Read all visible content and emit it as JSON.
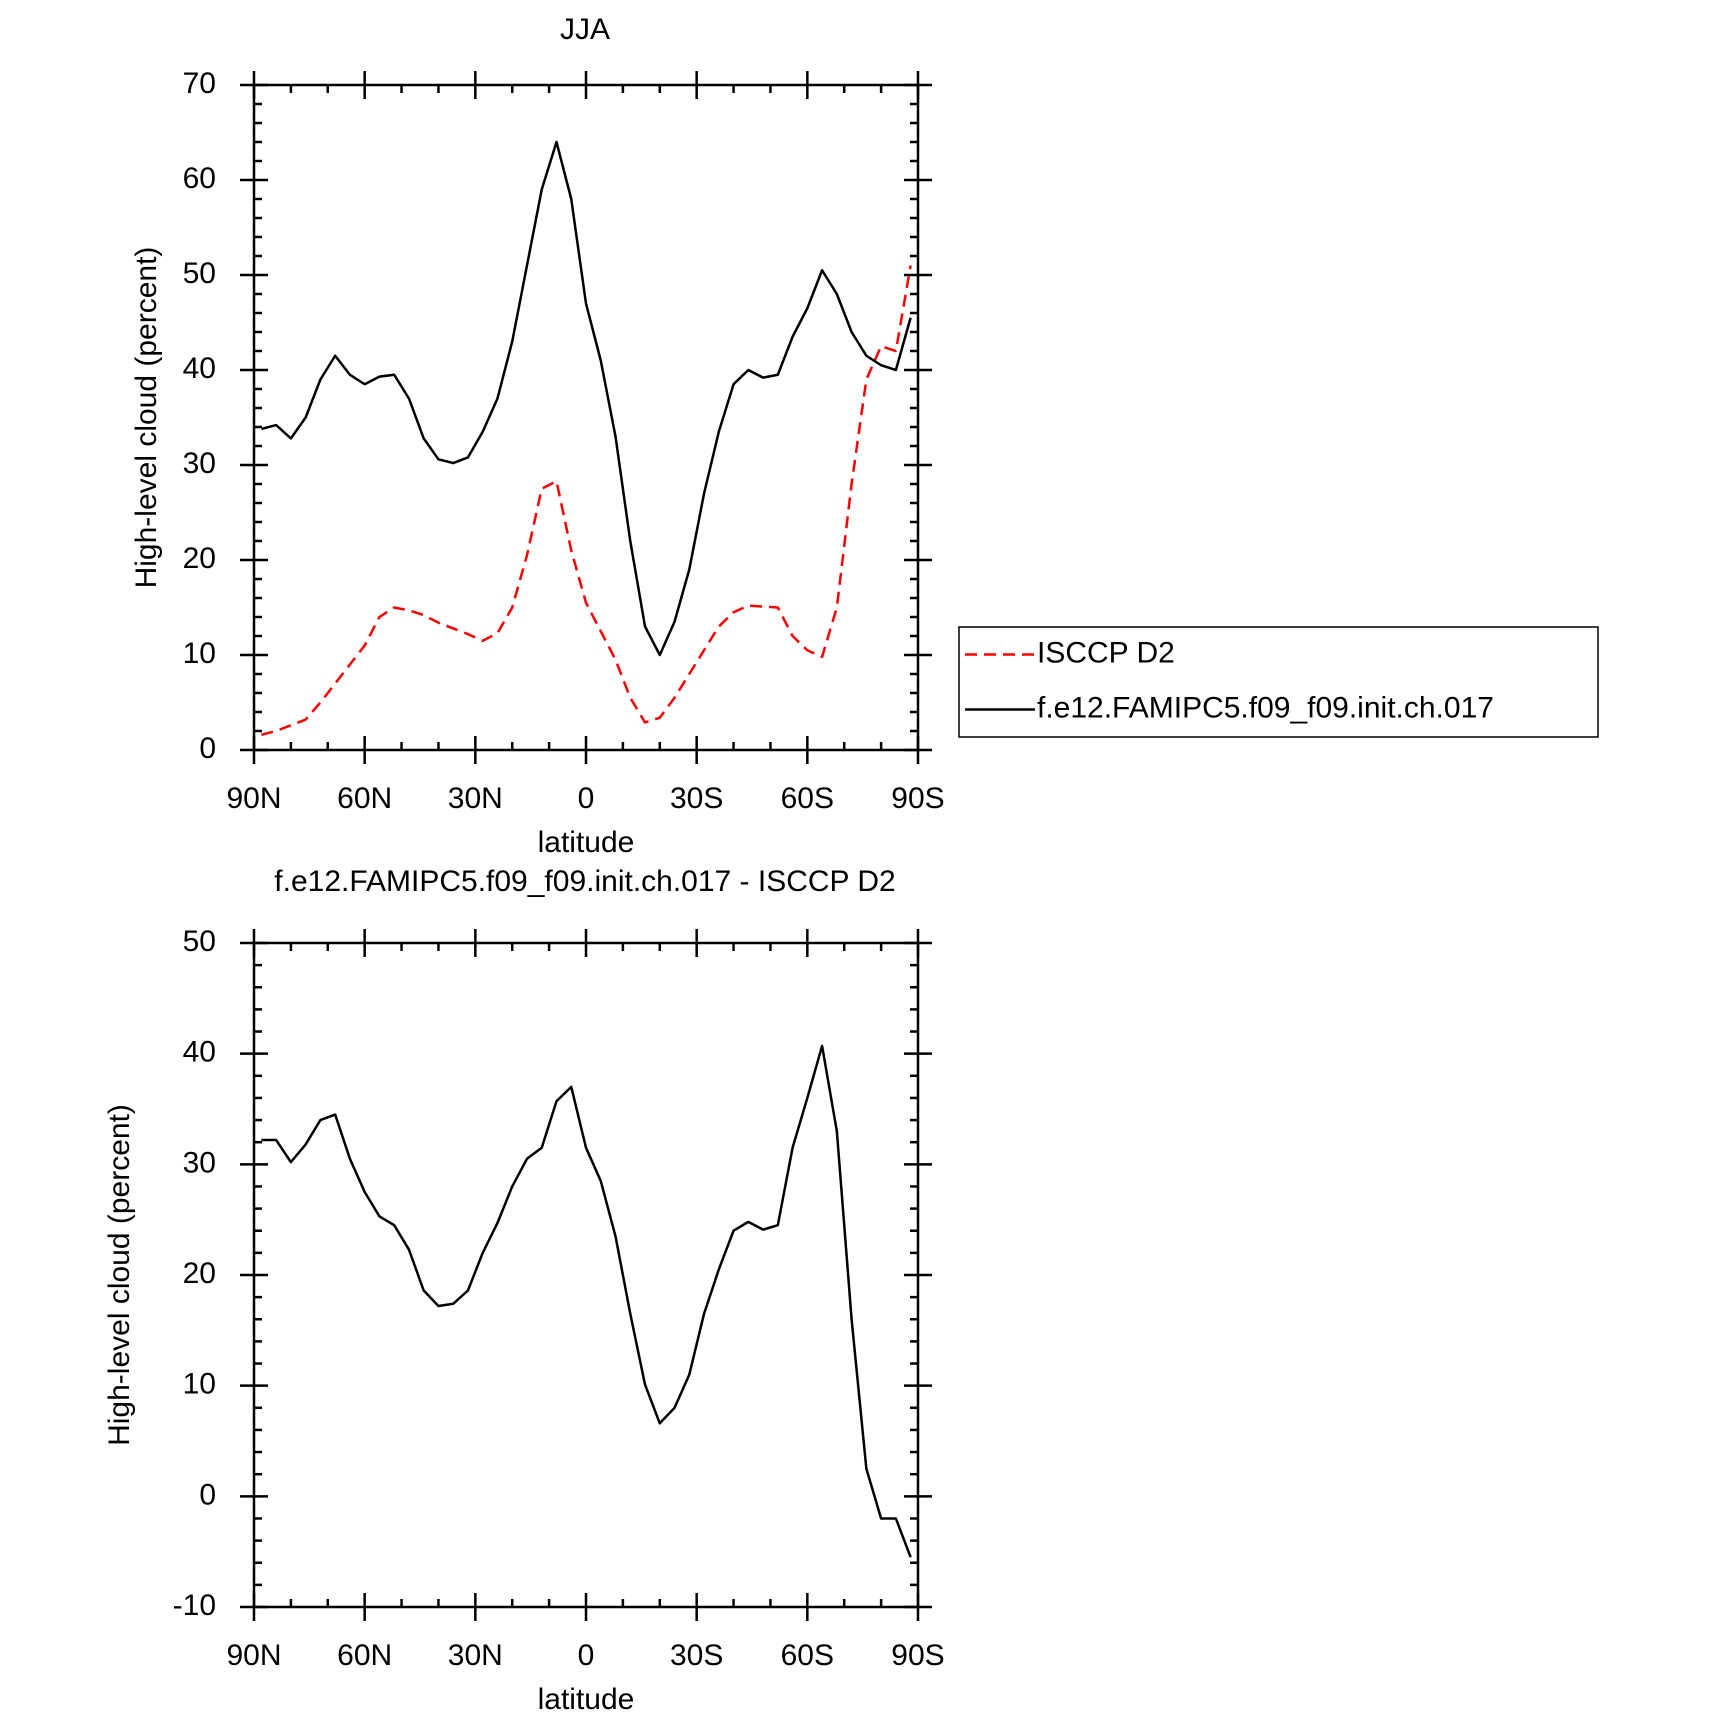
{
  "chart_data": [
    {
      "type": "line",
      "title": "JJA",
      "x_label": "latitude",
      "y_label": "High-level cloud (percent)",
      "xlim": [
        90,
        -90
      ],
      "ylim": [
        0,
        70
      ],
      "xticks": [
        {
          "value": 90,
          "label": "90N"
        },
        {
          "value": 60,
          "label": "60N"
        },
        {
          "value": 30,
          "label": "30N"
        },
        0,
        {
          "value": -30,
          "label": "30S"
        },
        {
          "value": -60,
          "label": "60S"
        },
        {
          "value": -90,
          "label": "90S"
        }
      ],
      "yticks": [
        0,
        10,
        20,
        30,
        40,
        50,
        60,
        70
      ],
      "legend": "right",
      "x": [
        88,
        84,
        80,
        76,
        72,
        68,
        64,
        60,
        56,
        52,
        48,
        44,
        40,
        36,
        32,
        28,
        24,
        20,
        16,
        12,
        8,
        4,
        0,
        -4,
        -8,
        -12,
        -16,
        -20,
        -24,
        -28,
        -32,
        -36,
        -40,
        -44,
        -48,
        -52,
        -56,
        -60,
        -64,
        -68,
        -72,
        -76,
        -80,
        -84,
        -88
      ],
      "series": [
        {
          "name": "ISCCP D2",
          "color": "#ff0000",
          "dash": true,
          "values": [
            1.6,
            2.0,
            2.6,
            3.2,
            5,
            7,
            9,
            11,
            14,
            15,
            14.7,
            14.2,
            13.4,
            12.8,
            12.2,
            11.5,
            12.3,
            15,
            20.5,
            27.5,
            28.3,
            21,
            15.5,
            12.5,
            9.5,
            5.5,
            2.9,
            3.4,
            5.5,
            8,
            10.5,
            13,
            14.5,
            15.2,
            15.1,
            15.0,
            12,
            10.5,
            9.8,
            15,
            28,
            39,
            42.5,
            42,
            51
          ]
        },
        {
          "name": "f.e12.FAMIPC5.f09_f09.init.ch.017",
          "color": "#000000",
          "dash": false,
          "values": [
            33.8,
            34.2,
            32.8,
            35,
            39,
            41.5,
            39.5,
            38.5,
            39.3,
            39.5,
            37,
            32.8,
            30.6,
            30.2,
            30.8,
            33.5,
            37,
            43,
            51,
            59,
            64,
            58,
            47,
            41,
            33,
            22,
            13,
            10,
            13.5,
            19,
            27,
            33.5,
            38.5,
            40,
            39.2,
            39.5,
            43.5,
            46.5,
            50.5,
            48,
            44,
            41.5,
            40.5,
            40,
            45.5
          ]
        }
      ]
    },
    {
      "type": "line",
      "title": "f.e12.FAMIPC5.f09_f09.init.ch.017 - ISCCP D2",
      "x_label": "latitude",
      "y_label": "High-level cloud (percent)",
      "xlim": [
        90,
        -90
      ],
      "ylim": [
        -10,
        50
      ],
      "xticks": [
        {
          "value": 90,
          "label": "90N"
        },
        {
          "value": 60,
          "label": "60N"
        },
        {
          "value": 30,
          "label": "30N"
        },
        0,
        {
          "value": -30,
          "label": "30S"
        },
        {
          "value": -60,
          "label": "60S"
        },
        {
          "value": -90,
          "label": "90S"
        }
      ],
      "yticks": [
        -10,
        0,
        10,
        20,
        30,
        40,
        50
      ],
      "x": [
        88,
        84,
        80,
        76,
        72,
        68,
        64,
        60,
        56,
        52,
        48,
        44,
        40,
        36,
        32,
        28,
        24,
        20,
        16,
        12,
        8,
        4,
        0,
        -4,
        -8,
        -12,
        -16,
        -20,
        -24,
        -28,
        -32,
        -36,
        -40,
        -44,
        -48,
        -52,
        -56,
        -60,
        -64,
        -68,
        -72,
        -76,
        -80,
        -84,
        -88
      ],
      "series": [
        {
          "color": "#000000",
          "dash": false,
          "values": [
            32.2,
            32.2,
            30.2,
            31.8,
            34,
            34.5,
            30.5,
            27.5,
            25.3,
            24.5,
            22.3,
            18.6,
            17.2,
            17.4,
            18.6,
            22,
            24.7,
            28,
            30.5,
            31.5,
            35.7,
            37,
            31.5,
            28.5,
            23.5,
            16.5,
            10.1,
            6.6,
            8,
            11,
            16.5,
            20.5,
            24,
            24.8,
            24.1,
            24.5,
            31.5,
            36,
            40.7,
            33,
            16,
            2.5,
            -2,
            -2,
            -5.5
          ]
        }
      ]
    }
  ]
}
